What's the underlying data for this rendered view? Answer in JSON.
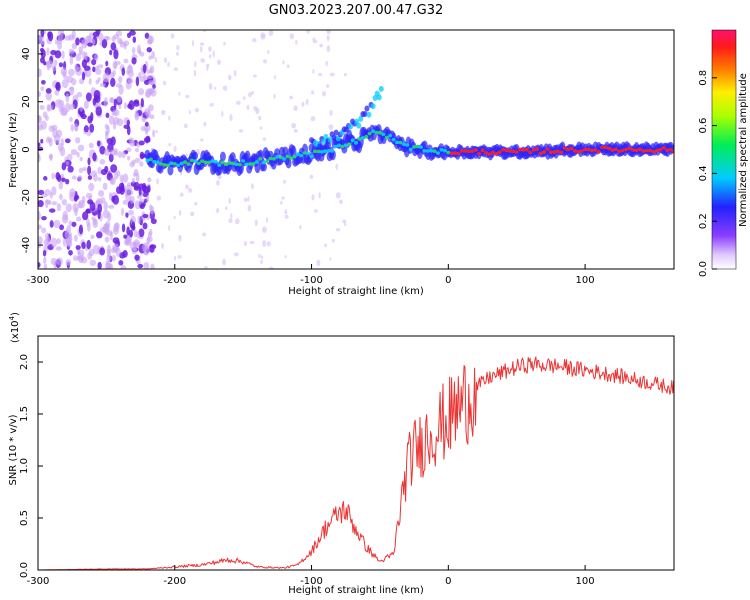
{
  "title": "GN03.2023.207.00.47.G32",
  "chart_data": [
    {
      "type": "heatmap",
      "xlabel": "Height of straight line (km)",
      "ylabel": "Frequency (Hz)",
      "xlim": [
        -300,
        165
      ],
      "ylim": [
        -50,
        50
      ],
      "xticks": [
        -300,
        -200,
        -100,
        0,
        100
      ],
      "yticks": [
        -40,
        -20,
        0,
        20,
        40
      ],
      "colorbar": {
        "label": "Normalized spectral amplitude",
        "range": [
          0,
          1
        ],
        "ticks": [
          "0.0",
          "0.2",
          "0.4",
          "0.6",
          "0.8"
        ]
      },
      "ridge": {
        "x": [
          -220,
          -200,
          -180,
          -160,
          -140,
          -120,
          -100,
          -80,
          -60,
          -55,
          -45,
          -40,
          -30,
          -20,
          -10,
          0,
          50,
          100,
          165
        ],
        "frequency": [
          -5,
          -6,
          -5,
          -6,
          -5,
          -3,
          -2,
          1,
          5,
          7,
          6,
          4,
          1,
          0,
          -1,
          -1,
          -1,
          0,
          0
        ]
      },
      "secondary_branch": {
        "x": [
          -100,
          -80,
          -65,
          -55,
          -48
        ],
        "frequency": [
          2,
          6,
          12,
          18,
          27
        ]
      }
    },
    {
      "type": "line",
      "xlabel": "Height of straight line (km)",
      "ylabel": "SNR (10 * v/v)",
      "scale_label": "(x10",
      "scale_exponent": "4",
      "xlim": [
        -300,
        165
      ],
      "ylim": [
        0,
        2.25
      ],
      "xticks": [
        -300,
        -200,
        -100,
        0,
        100
      ],
      "yticks": [
        "0.0",
        "0.5",
        "1.0",
        "1.5",
        "2.0"
      ],
      "line_color": "#ee3333",
      "series": [
        {
          "x": [
            -300,
            -250,
            -220,
            -200,
            -180,
            -160,
            -150,
            -140,
            -120,
            -110,
            -100,
            -90,
            -80,
            -75,
            -70,
            -60,
            -50,
            -40,
            -35,
            -30,
            -25,
            -20,
            -15,
            -10,
            -5,
            0,
            10,
            20,
            30,
            40,
            50,
            60,
            80,
            100,
            120,
            140,
            165
          ],
          "values": [
            0.0,
            0.01,
            0.01,
            0.03,
            0.05,
            0.1,
            0.08,
            0.03,
            0.02,
            0.05,
            0.18,
            0.4,
            0.55,
            0.58,
            0.45,
            0.22,
            0.08,
            0.15,
            0.6,
            1.0,
            1.15,
            1.2,
            1.3,
            1.35,
            1.4,
            1.45,
            1.6,
            1.75,
            1.85,
            1.9,
            1.95,
            1.98,
            1.96,
            1.92,
            1.88,
            1.82,
            1.75
          ]
        }
      ]
    }
  ]
}
